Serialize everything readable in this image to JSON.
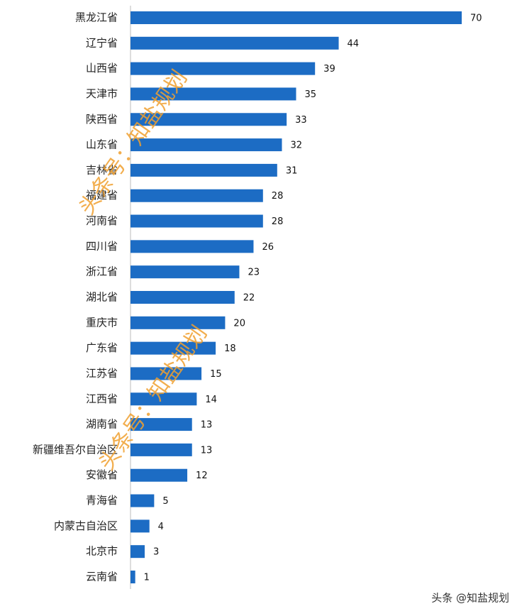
{
  "chart_data": {
    "type": "bar",
    "orientation": "horizontal",
    "categories": [
      "黑龙江省",
      "辽宁省",
      "山西省",
      "天津市",
      "陕西省",
      "山东省",
      "吉林省",
      "福建省",
      "河南省",
      "四川省",
      "浙江省",
      "湖北省",
      "重庆市",
      "广东省",
      "江苏省",
      "江西省",
      "湖南省",
      "新疆维吾尔自治区",
      "安徽省",
      "青海省",
      "内蒙古自治区",
      "北京市",
      "云南省"
    ],
    "values": [
      70,
      44,
      39,
      35,
      33,
      32,
      31,
      28,
      28,
      26,
      23,
      22,
      20,
      18,
      15,
      14,
      13,
      13,
      12,
      5,
      4,
      3,
      1
    ],
    "color": "#1c6cc4"
  },
  "watermarks": [
    "头条号：知盐规划",
    "头条号：知盐规划"
  ],
  "footer": "头条 @知盐规划"
}
